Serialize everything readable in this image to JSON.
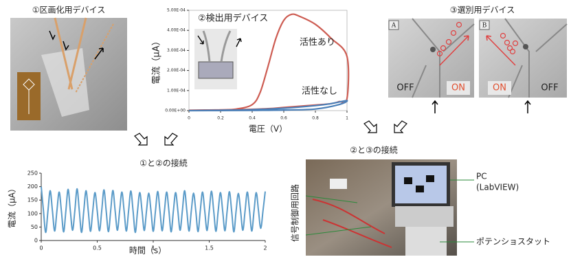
{
  "figure": {
    "device1": "①区画化用デバイス",
    "device3": "③選別用デバイス",
    "panel_a": "A",
    "panel_b": "B",
    "a_off": "OFF",
    "a_on": "ON",
    "b_on": "ON",
    "b_off": "OFF",
    "connect23": "②と③の接続",
    "pc": "PC",
    "labview": "(LabVIEW)",
    "circuit": "信号制御用回路",
    "potentiostat": "ポテンショスタット"
  },
  "chart_data": [
    {
      "type": "line",
      "title": "②検出用デバイス",
      "xlabel": "電圧（V）",
      "ylabel": "電流（μA）",
      "xlim": [
        0,
        1
      ],
      "xticks": [
        0,
        0.2,
        0.4,
        0.6,
        0.8,
        1
      ],
      "ylim": [
        0,
        0.0005
      ],
      "yticks": [
        {
          "value": 0,
          "label": "0.00E+00"
        },
        {
          "value": 0.0001,
          "label": "1.00E-04"
        },
        {
          "value": 0.0002,
          "label": "2.00E-04"
        },
        {
          "value": 0.0003,
          "label": "3.00E-04"
        },
        {
          "value": 0.0004,
          "label": "4.00E-04"
        },
        {
          "value": 0.0005,
          "label": "5.00E-04"
        }
      ],
      "series": [
        {
          "name": "活性あり",
          "color": "#cd5c52",
          "x": [
            0,
            0.1,
            0.2,
            0.3,
            0.4,
            0.45,
            0.5,
            0.55,
            0.6,
            0.65,
            0.7,
            0.8,
            0.9,
            1,
            1,
            0.95,
            0.9,
            0.8,
            0.7,
            0.6,
            0.5,
            0.3,
            0
          ],
          "values": [
            2e-06,
            3e-06,
            4e-06,
            8e-06,
            3e-05,
            9e-05,
            0.00022,
            0.00036,
            0.00045,
            0.00048,
            0.00047,
            0.00043,
            0.00036,
            0.00027,
            6e-05,
            4.5e-05,
            3.5e-05,
            2.8e-05,
            2.2e-05,
            1.6e-05,
            1e-05,
            5e-06,
            2e-06
          ]
        },
        {
          "name": "活性なし",
          "color": "#4a7fb8",
          "x": [
            0,
            0.2,
            0.4,
            0.6,
            0.8,
            0.9,
            1,
            0.95,
            0.8,
            0.6,
            0.4,
            0.2,
            0
          ],
          "values": [
            0,
            2e-06,
            5e-06,
            1.2e-05,
            2.5e-05,
            3.5e-05,
            5e-05,
            3e-05,
            8e-06,
            3e-06,
            1e-06,
            5e-07,
            0
          ]
        }
      ]
    },
    {
      "type": "line",
      "title": "①と②の接続",
      "xlabel": "時間（s）",
      "ylabel": "電流（μA）",
      "color": "#5b9bc8",
      "xlim": [
        0,
        2
      ],
      "xticks": [
        0,
        0.5,
        1,
        1.5,
        2
      ],
      "ylim": [
        0,
        250
      ],
      "yticks": [
        0,
        50,
        100,
        150,
        200,
        250
      ],
      "x": [
        0,
        0.02,
        0.04,
        0.06,
        0.08,
        0.1,
        0.12,
        0.14,
        0.16,
        0.18,
        0.2,
        0.22,
        0.24,
        0.26,
        0.28,
        0.3,
        0.32,
        0.34,
        0.36,
        0.38,
        0.4,
        0.42,
        0.44,
        0.46,
        0.48,
        0.5,
        0.52,
        0.54,
        0.56,
        0.58,
        0.6,
        0.62,
        0.64,
        0.66,
        0.68,
        0.7,
        0.72,
        0.74,
        0.76,
        0.78,
        0.8,
        0.82,
        0.84,
        0.86,
        0.88,
        0.9,
        0.92,
        0.94,
        0.96,
        0.98,
        1,
        1.02,
        1.04,
        1.06,
        1.08,
        1.1,
        1.12,
        1.14,
        1.16,
        1.18,
        1.2,
        1.22,
        1.24,
        1.26,
        1.28,
        1.3,
        1.32,
        1.34,
        1.36,
        1.38,
        1.4,
        1.42,
        1.44,
        1.46,
        1.48,
        1.5,
        1.52,
        1.54,
        1.56,
        1.58,
        1.6,
        1.62,
        1.64,
        1.66,
        1.68,
        1.7,
        1.72,
        1.74,
        1.76,
        1.78,
        1.8,
        1.82,
        1.84,
        1.86,
        1.88,
        1.9,
        1.92,
        1.94,
        1.96,
        1.98,
        2
      ],
      "values": [
        200,
        110,
        30,
        110,
        185,
        110,
        35,
        110,
        180,
        110,
        32,
        110,
        190,
        110,
        38,
        110,
        192,
        110,
        30,
        110,
        185,
        110,
        34,
        110,
        178,
        110,
        36,
        110,
        188,
        110,
        33,
        110,
        186,
        110,
        38,
        110,
        180,
        110,
        35,
        110,
        184,
        110,
        30,
        110,
        178,
        110,
        37,
        110,
        176,
        110,
        34,
        110,
        182,
        110,
        36,
        110,
        180,
        110,
        32,
        110,
        178,
        110,
        38,
        110,
        185,
        110,
        35,
        110,
        176,
        110,
        33,
        110,
        180,
        110,
        37,
        110,
        183,
        110,
        34,
        110,
        178,
        110,
        36,
        110,
        181,
        110,
        32,
        110,
        175,
        110,
        38,
        110,
        180,
        110,
        35,
        110,
        178,
        110,
        45,
        110,
        182
      ]
    }
  ]
}
